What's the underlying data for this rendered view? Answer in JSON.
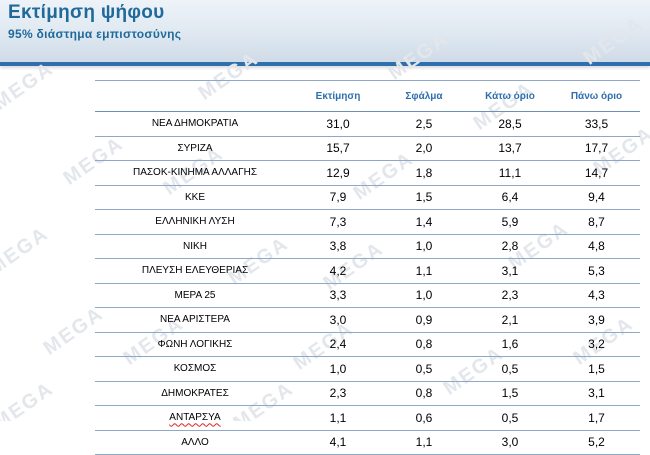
{
  "header": {
    "title": "Εκτίμηση ψήφου",
    "subtitle": "95% διάστημα εμπιστοσύνης"
  },
  "watermark": "MEGA",
  "table": {
    "columns": [
      "Εκτίμηση",
      "Σφάλμα",
      "Κάτω όριο",
      "Πάνω όριο"
    ],
    "rows": [
      {
        "party": "ΝΕΑ   ΔΗΜΟΚΡΑΤΙΑ",
        "estimate": "31,0",
        "error": "2,5",
        "lower": "28,5",
        "upper": "33,5"
      },
      {
        "party": "ΣΥΡΙΖΑ",
        "estimate": "15,7",
        "error": "2,0",
        "lower": "13,7",
        "upper": "17,7"
      },
      {
        "party": "ΠΑΣΟΚ-ΚΙΝΗΜΑ  ΑΛΛΑΓΗΣ",
        "estimate": "12,9",
        "error": "1,8",
        "lower": "11,1",
        "upper": "14,7"
      },
      {
        "party": "ΚΚΕ",
        "estimate": "7,9",
        "error": "1,5",
        "lower": "6,4",
        "upper": "9,4"
      },
      {
        "party": "ΕΛΛΗΝΙΚΗ ΛΥΣΗ",
        "estimate": "7,3",
        "error": "1,4",
        "lower": "5,9",
        "upper": "8,7"
      },
      {
        "party": "ΝΙΚΗ",
        "estimate": "3,8",
        "error": "1,0",
        "lower": "2,8",
        "upper": "4,8"
      },
      {
        "party": "ΠΛΕΥΣΗ ΕΛΕΥΘΕΡΙΑΣ",
        "estimate": "4,2",
        "error": "1,1",
        "lower": "3,1",
        "upper": "5,3"
      },
      {
        "party": "ΜΕΡΑ 25",
        "estimate": "3,3",
        "error": "1,0",
        "lower": "2,3",
        "upper": "4,3"
      },
      {
        "party": "ΝΕΑ ΑΡΙΣΤΕΡΑ",
        "estimate": "3,0",
        "error": "0,9",
        "lower": "2,1",
        "upper": "3,9"
      },
      {
        "party": "ΦΩΝΗ ΛΟΓΙΚΗΣ",
        "estimate": "2,4",
        "error": "0,8",
        "lower": "1,6",
        "upper": "3,2"
      },
      {
        "party": "ΚΟΣΜΟΣ",
        "estimate": "1,0",
        "error": "0,5",
        "lower": "0,5",
        "upper": "1,5"
      },
      {
        "party": "ΔΗΜΟΚΡΑΤΕΣ",
        "estimate": "2,3",
        "error": "0,8",
        "lower": "1,5",
        "upper": "3,1"
      },
      {
        "party": "ΑΝΤΑΡΣΥΑ",
        "estimate": "1,1",
        "error": "0,6",
        "lower": "0,5",
        "upper": "1,7"
      },
      {
        "party": "ΑΛΛΟ",
        "estimate": "4,1",
        "error": "1,1",
        "lower": "3,0",
        "upper": "5,2"
      }
    ]
  }
}
